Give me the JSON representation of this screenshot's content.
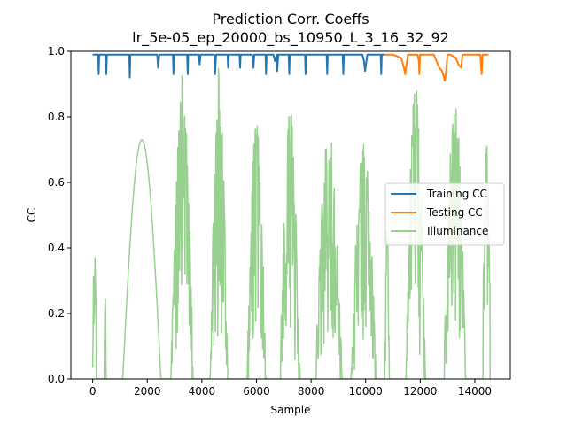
{
  "chart_data": {
    "type": "line",
    "title": "Prediction Corr. Coeffs",
    "subtitle": "lr_5e-05_ep_20000_bs_10950_L_3_16_32_92",
    "xlabel": "Sample",
    "ylabel": "CC",
    "xlim": [
      -800,
      15300
    ],
    "ylim": [
      0,
      1.0
    ],
    "x_ticks": [
      0,
      2000,
      4000,
      6000,
      8000,
      10000,
      12000,
      14000
    ],
    "x_tick_labels": [
      "0",
      "2000",
      "4000",
      "6000",
      "8000",
      "10000",
      "12000",
      "14000"
    ],
    "y_ticks": [
      0.0,
      0.2,
      0.4,
      0.6,
      0.8,
      1.0
    ],
    "y_tick_labels": [
      "0.0",
      "0.2",
      "0.4",
      "0.6",
      "0.8",
      "1.0"
    ],
    "grid": false,
    "legend_position": "center-right",
    "series": [
      {
        "name": "Training CC",
        "color": "#1f77b4",
        "x": [
          0,
          200,
          220,
          240,
          260,
          400,
          480,
          500,
          520,
          540,
          1300,
          1340,
          1360,
          1380,
          1500,
          2300,
          2360,
          2400,
          2440,
          2600,
          2900,
          2940,
          2960,
          2980,
          3300,
          3460,
          3480,
          3500,
          3800,
          3880,
          3920,
          3950,
          4100,
          4400,
          4460,
          4480,
          4520,
          4700,
          4900,
          4940,
          4960,
          4980,
          5300,
          5380,
          5400,
          5420,
          5600,
          5840,
          5870,
          5890,
          5920,
          6200,
          6330,
          6350,
          6370,
          6500,
          6620,
          6680,
          6740,
          6760,
          6800,
          7150,
          7180,
          7200,
          7220,
          7500,
          7780,
          7800,
          7820,
          8000,
          8540,
          8570,
          8590,
          8610,
          8900,
          9160,
          9180,
          9200,
          9500,
          9800,
          9880,
          9940,
          9980,
          10060,
          10200,
          10500,
          10550,
          10570,
          10590,
          10700
        ],
        "y": [
          0.99,
          0.99,
          0.93,
          0.99,
          0.99,
          0.99,
          0.99,
          0.93,
          0.99,
          0.99,
          0.99,
          0.99,
          0.92,
          0.99,
          0.99,
          0.99,
          0.99,
          0.95,
          0.99,
          0.99,
          0.99,
          0.99,
          0.93,
          0.99,
          0.99,
          0.99,
          0.93,
          0.99,
          0.99,
          0.99,
          0.96,
          0.99,
          0.99,
          0.99,
          0.99,
          0.93,
          0.99,
          0.99,
          0.99,
          0.99,
          0.95,
          0.99,
          0.99,
          0.99,
          0.95,
          0.99,
          0.99,
          0.99,
          0.98,
          0.95,
          0.99,
          0.99,
          0.99,
          0.93,
          0.99,
          0.99,
          0.99,
          0.97,
          0.99,
          0.94,
          0.99,
          0.99,
          0.99,
          0.93,
          0.99,
          0.99,
          0.99,
          0.93,
          0.99,
          0.99,
          0.99,
          0.99,
          0.93,
          0.99,
          0.99,
          0.99,
          0.93,
          0.99,
          0.99,
          0.99,
          0.99,
          0.97,
          0.94,
          0.99,
          0.99,
          0.99,
          0.99,
          0.93,
          0.99,
          0.99
        ]
      },
      {
        "name": "Testing CC",
        "color": "#ff7f0e",
        "x": [
          10700,
          11000,
          11300,
          11400,
          11450,
          11500,
          11550,
          11900,
          11950,
          11970,
          11990,
          12300,
          12500,
          12600,
          12700,
          12800,
          12900,
          12950,
          13000,
          13100,
          13300,
          13400,
          13500,
          13550,
          13700,
          14000,
          14200,
          14250,
          14280,
          14300,
          14500
        ],
        "y": [
          0.99,
          0.99,
          0.98,
          0.95,
          0.93,
          0.96,
          0.99,
          0.99,
          0.97,
          0.93,
          0.99,
          0.99,
          0.99,
          0.97,
          0.95,
          0.94,
          0.91,
          0.94,
          0.99,
          0.99,
          0.98,
          0.96,
          0.95,
          0.99,
          0.99,
          0.99,
          0.99,
          0.93,
          0.99,
          0.99,
          0.99
        ]
      },
      {
        "name": "Illuminance",
        "color": "#98d090",
        "envelopes": [
          {
            "x0": 0,
            "x1": 130,
            "peak": 0.5,
            "base": 0.12,
            "noise": 0.1
          },
          {
            "x0": 420,
            "x1": 500,
            "peak": 0.25,
            "base": 0.0,
            "noise": 0.05
          },
          {
            "x0": 1100,
            "x1": 2500,
            "peak": 0.73,
            "base": 0.0,
            "noise": 0.0
          },
          {
            "x0": 2850,
            "x1": 3700,
            "peak": 0.93,
            "base": 0.0,
            "noise": 0.4
          },
          {
            "x0": 4300,
            "x1": 4950,
            "peak": 1.0,
            "base": 0.0,
            "noise": 0.5
          },
          {
            "x0": 5650,
            "x1": 6350,
            "peak": 0.82,
            "base": 0.0,
            "noise": 0.4
          },
          {
            "x0": 6850,
            "x1": 7600,
            "peak": 0.85,
            "base": 0.0,
            "noise": 0.4
          },
          {
            "x0": 8150,
            "x1": 9150,
            "peak": 0.76,
            "base": 0.0,
            "noise": 0.35
          },
          {
            "x0": 9450,
            "x1": 10400,
            "peak": 0.72,
            "base": 0.0,
            "noise": 0.4
          },
          {
            "x0": 10700,
            "x1": 10870,
            "peak": 0.5,
            "base": 0.0,
            "noise": 0.2
          },
          {
            "x0": 11450,
            "x1": 12200,
            "peak": 0.9,
            "base": 0.0,
            "noise": 0.45
          },
          {
            "x0": 12850,
            "x1": 13700,
            "peak": 0.87,
            "base": 0.0,
            "noise": 0.45
          },
          {
            "x0": 14300,
            "x1": 14560,
            "peak": 0.73,
            "base": 0.25,
            "noise": 0.25
          }
        ]
      }
    ]
  }
}
